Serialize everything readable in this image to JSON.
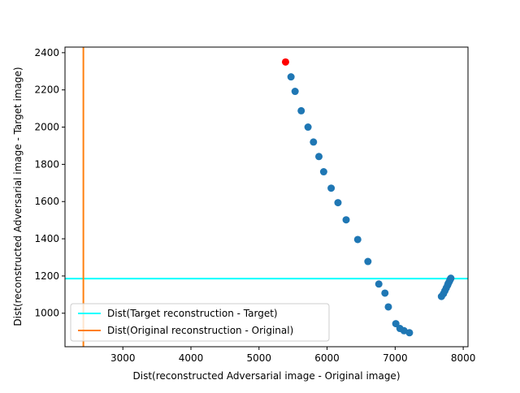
{
  "chart_data": {
    "type": "scatter",
    "title": "",
    "xlabel": "Dist(reconstructed Adversarial image - Original image)",
    "ylabel": "Dist(reconstructed Adversarial image - Target image)",
    "xlim": [
      2150,
      8070
    ],
    "ylim": [
      820,
      2430
    ],
    "xticks": [
      3000,
      4000,
      5000,
      6000,
      7000,
      8000
    ],
    "yticks": [
      1000,
      1200,
      1400,
      1600,
      1800,
      2000,
      2200,
      2400
    ],
    "grid": false,
    "legend_position": "lower-left",
    "series": [
      {
        "kind": "points",
        "color": "#1f77b4",
        "points": [
          {
            "x": 5470,
            "y": 2270
          },
          {
            "x": 5530,
            "y": 2192
          },
          {
            "x": 5620,
            "y": 2088
          },
          {
            "x": 5720,
            "y": 2000
          },
          {
            "x": 5800,
            "y": 1920
          },
          {
            "x": 5880,
            "y": 1842
          },
          {
            "x": 5950,
            "y": 1760
          },
          {
            "x": 6060,
            "y": 1672
          },
          {
            "x": 6160,
            "y": 1594
          },
          {
            "x": 6280,
            "y": 1502
          },
          {
            "x": 6450,
            "y": 1396
          },
          {
            "x": 6600,
            "y": 1278
          },
          {
            "x": 6760,
            "y": 1157
          },
          {
            "x": 6850,
            "y": 1108
          },
          {
            "x": 6900,
            "y": 1034
          },
          {
            "x": 7010,
            "y": 944
          },
          {
            "x": 7070,
            "y": 918
          },
          {
            "x": 7130,
            "y": 906
          },
          {
            "x": 7210,
            "y": 895
          },
          {
            "x": 7680,
            "y": 1090
          },
          {
            "x": 7710,
            "y": 1105
          },
          {
            "x": 7730,
            "y": 1120
          },
          {
            "x": 7750,
            "y": 1135
          },
          {
            "x": 7770,
            "y": 1150
          },
          {
            "x": 7780,
            "y": 1160
          },
          {
            "x": 7795,
            "y": 1170
          },
          {
            "x": 7805,
            "y": 1178
          },
          {
            "x": 7812,
            "y": 1184
          },
          {
            "x": 7818,
            "y": 1188
          }
        ]
      },
      {
        "kind": "points",
        "color": "#ff0000",
        "points": [
          {
            "x": 5390,
            "y": 2350
          }
        ]
      },
      {
        "kind": "hline",
        "name": "Dist(Target reconstruction - Target)",
        "color": "#00ffff",
        "y": 1186
      },
      {
        "kind": "vline",
        "name": "Dist(Original reconstruction - Original)",
        "color": "#ff7f0e",
        "x": 2420
      }
    ]
  }
}
